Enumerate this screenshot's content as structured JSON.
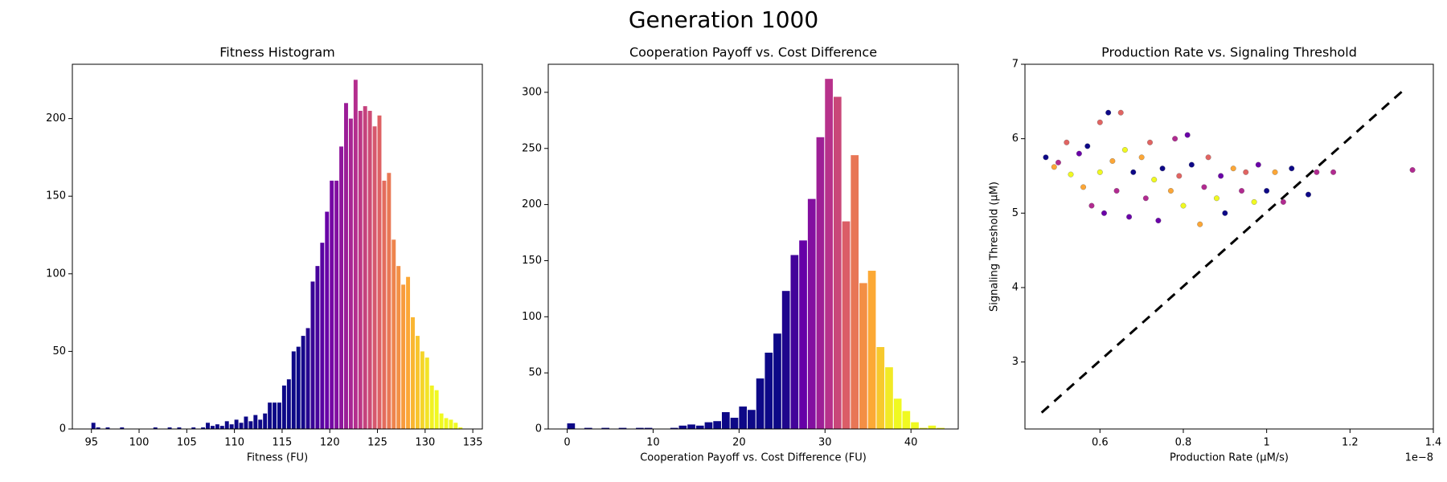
{
  "title": "Generation 1000",
  "chart_data": [
    {
      "type": "histogram",
      "title": "Fitness Histogram",
      "xlabel": "Fitness (FU)",
      "bins": [
        95,
        95.5,
        96,
        96.5,
        97,
        97.5,
        98,
        98.5,
        99,
        99.5,
        100,
        100.5,
        101,
        101.5,
        102,
        102.5,
        103,
        103.5,
        104,
        104.5,
        105,
        105.5,
        106,
        106.5,
        107,
        107.5,
        108,
        108.5,
        109,
        109.5,
        110,
        110.5,
        111,
        111.5,
        112,
        112.5,
        113,
        113.5,
        114,
        114.5,
        115,
        115.5,
        116,
        116.5,
        117,
        117.5,
        118,
        118.5,
        119,
        119.5,
        120,
        120.5,
        121,
        121.5,
        122,
        122.5,
        123,
        123.5,
        124,
        124.5,
        125,
        125.5,
        126,
        126.5,
        127,
        127.5,
        128,
        128.5,
        129,
        129.5,
        130,
        130.5,
        131,
        131.5,
        132,
        132.5,
        133,
        133.5,
        134
      ],
      "values": [
        4,
        1,
        0,
        1,
        0,
        0,
        1,
        0,
        0,
        0,
        0,
        0,
        0,
        1,
        0,
        0,
        1,
        0,
        1,
        0,
        0,
        1,
        0,
        1,
        4,
        2,
        3,
        2,
        5,
        3,
        6,
        4,
        8,
        5,
        9,
        6,
        10,
        17,
        17,
        17,
        28,
        32,
        50,
        53,
        60,
        65,
        95,
        105,
        120,
        140,
        160,
        160,
        182,
        210,
        200,
        225,
        205,
        208,
        205,
        195,
        202,
        160,
        165,
        122,
        105,
        93,
        98,
        72,
        60,
        50,
        46,
        28,
        25,
        10,
        7,
        6,
        4,
        1
      ],
      "xlim": [
        93,
        136
      ],
      "ylim": [
        0,
        235
      ],
      "xticks": [
        95,
        100,
        105,
        110,
        115,
        120,
        125,
        130,
        135
      ],
      "yticks": [
        0,
        50,
        100,
        150,
        200
      ],
      "colormap": [
        "#0d0887",
        "#6a00a8",
        "#b12a90",
        "#e16462",
        "#fca636",
        "#f0f921"
      ],
      "color_lim": [
        117,
        131
      ]
    },
    {
      "type": "histogram",
      "title": "Cooperation Payoff vs. Cost Difference",
      "xlabel": "Cooperation Payoff vs. Cost Difference (FU)",
      "bins": [
        0,
        1,
        2,
        3,
        4,
        5,
        6,
        7,
        8,
        9,
        10,
        11,
        12,
        13,
        14,
        15,
        16,
        17,
        18,
        19,
        20,
        21,
        22,
        23,
        24,
        25,
        26,
        27,
        28,
        29,
        30,
        31,
        32,
        33,
        34,
        35,
        36,
        37,
        38,
        39,
        40,
        41,
        42,
        43,
        44
      ],
      "values": [
        5,
        0,
        1,
        0,
        1,
        0,
        1,
        0,
        1,
        1,
        0,
        0,
        1,
        3,
        4,
        3,
        6,
        7,
        15,
        10,
        20,
        17,
        45,
        68,
        85,
        123,
        155,
        168,
        205,
        260,
        312,
        296,
        185,
        244,
        130,
        141,
        73,
        55,
        27,
        16,
        6,
        1,
        3,
        1
      ],
      "xlim": [
        -2.2,
        45.5
      ],
      "ylim": [
        0,
        325
      ],
      "xticks": [
        0,
        10,
        20,
        30,
        40
      ],
      "yticks": [
        0,
        50,
        100,
        150,
        200,
        250,
        300
      ],
      "colormap": [
        "#0d0887",
        "#6a00a8",
        "#b12a90",
        "#e16462",
        "#fca636",
        "#f0f921"
      ],
      "color_lim": [
        25,
        38
      ]
    },
    {
      "type": "scatter",
      "title": "Production Rate vs. Signaling Threshold",
      "xlabel": "Production Rate (μM/s)",
      "ylabel": "Signaling Threshold (μM)",
      "x_offset_label": "1e−8",
      "x": [
        0.47,
        0.49,
        0.5,
        0.52,
        0.53,
        0.55,
        0.56,
        0.57,
        0.58,
        0.6,
        0.6,
        0.61,
        0.62,
        0.63,
        0.64,
        0.65,
        0.66,
        0.67,
        0.68,
        0.7,
        0.71,
        0.72,
        0.73,
        0.74,
        0.75,
        0.77,
        0.78,
        0.79,
        0.8,
        0.81,
        0.82,
        0.84,
        0.85,
        0.86,
        0.88,
        0.89,
        0.9,
        0.92,
        0.94,
        0.95,
        0.97,
        0.98,
        1.0,
        1.02,
        1.04,
        1.06,
        1.1,
        1.12,
        1.16,
        1.35
      ],
      "values": [
        5.75,
        5.62,
        5.68,
        5.95,
        5.52,
        5.8,
        5.35,
        5.9,
        5.1,
        6.22,
        5.55,
        5.0,
        6.35,
        5.7,
        5.3,
        6.35,
        5.85,
        4.95,
        5.55,
        5.75,
        5.2,
        5.95,
        5.45,
        4.9,
        5.6,
        5.3,
        6.0,
        5.5,
        5.1,
        6.05,
        5.65,
        4.85,
        5.35,
        5.75,
        5.2,
        5.5,
        5.0,
        5.6,
        5.3,
        5.55,
        5.15,
        5.65,
        5.3,
        5.55,
        5.15,
        5.6,
        5.25,
        5.55,
        5.55,
        5.58
      ],
      "colors": [
        "#0d0887",
        "#fca636",
        "#b12a90",
        "#e16462",
        "#f0f921",
        "#6a00a8",
        "#fca636",
        "#0d0887",
        "#b12a90",
        "#e16462",
        "#f0f921",
        "#6a00a8",
        "#0d0887",
        "#fca636",
        "#b12a90",
        "#e16462",
        "#f0f921",
        "#6a00a8",
        "#0d0887",
        "#fca636",
        "#b12a90",
        "#e16462",
        "#f0f921",
        "#6a00a8",
        "#0d0887",
        "#fca636",
        "#b12a90",
        "#e16462",
        "#f0f921",
        "#6a00a8",
        "#0d0887",
        "#fca636",
        "#b12a90",
        "#e16462",
        "#f0f921",
        "#6a00a8",
        "#0d0887",
        "#fca636",
        "#b12a90",
        "#e16462",
        "#f0f921",
        "#6a00a8",
        "#0d0887",
        "#fca636",
        "#b12a90",
        "#0d0887",
        "#0d0887",
        "#b12a90",
        "#b12a90",
        "#b12a90"
      ],
      "reference_line": {
        "x": [
          0.46,
          1.33
        ],
        "y": [
          2.32,
          6.66
        ]
      },
      "xlim": [
        0.42,
        1.4
      ],
      "ylim": [
        2.1,
        7.0
      ],
      "xticks": [
        0.6,
        0.8,
        1.0,
        1.2,
        1.4
      ],
      "yticks": [
        3,
        4,
        5,
        6,
        7
      ]
    }
  ]
}
